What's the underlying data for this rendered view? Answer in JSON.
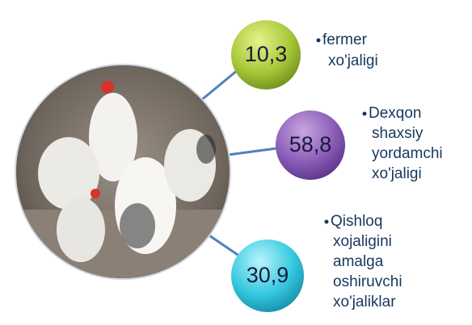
{
  "nodes": [
    {
      "value": "10,3",
      "label": [
        "fermer",
        "xo'jaligi"
      ]
    },
    {
      "value": "58,8",
      "label": [
        "Dexqon",
        "shaxsiy",
        "yordamchi",
        "xo'jaligi"
      ]
    },
    {
      "value": "30,9",
      "label": [
        "Qishloq",
        "xojaligini",
        "amalga",
        "oshiruvchi",
        "xo'jaliklar"
      ]
    }
  ]
}
